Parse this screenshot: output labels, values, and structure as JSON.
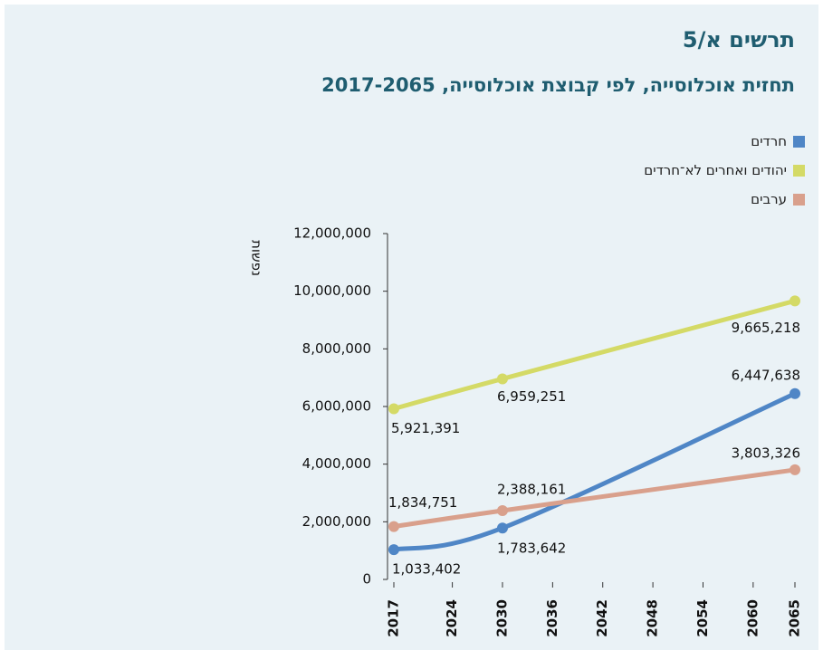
{
  "chart_data": {
    "type": "line",
    "title": "תרשים א/5",
    "subtitle": "תחזית אוכלוסייה, לפי קבוצת אוכלוסייה, 2017-2065",
    "y_label": "נפשות",
    "x": [
      2017,
      2030,
      2065
    ],
    "series": [
      {
        "name": "חרדים",
        "color": "#4f86c6",
        "values": [
          1033402,
          1783642,
          6447638
        ],
        "value_labels": [
          "1,033,402",
          "1,783,642",
          "6,447,638"
        ]
      },
      {
        "name": "יהודים ואחרים לא־חרדים",
        "color": "#d4da66",
        "values": [
          5921391,
          6959251,
          9665218
        ],
        "value_labels": [
          "5,921,391",
          "6,959,251",
          "9,665,218"
        ]
      },
      {
        "name": "ערבים",
        "color": "#d9a08c",
        "values": [
          1834751,
          2388161,
          3803326
        ],
        "value_labels": [
          "1,834,751",
          "2,388,161",
          "3,803,326"
        ]
      }
    ],
    "xlim": [
      2017,
      2065
    ],
    "xticks": [
      2017,
      2024,
      2030,
      2036,
      2042,
      2048,
      2054,
      2060,
      2065
    ],
    "ylim": [
      0,
      12000000
    ],
    "yticks": [
      0,
      {
        "value": 2000000,
        "label": "2,000,000"
      },
      {
        "value": 4000000,
        "label": "4,000,000"
      },
      {
        "value": 6000000,
        "label": "6,000,000"
      },
      {
        "value": 8000000,
        "label": "8,000,000"
      },
      {
        "value": 10000000,
        "label": "10,000,000"
      },
      {
        "value": 12000000,
        "label": "12,000,000"
      }
    ],
    "legend": "top-right"
  }
}
